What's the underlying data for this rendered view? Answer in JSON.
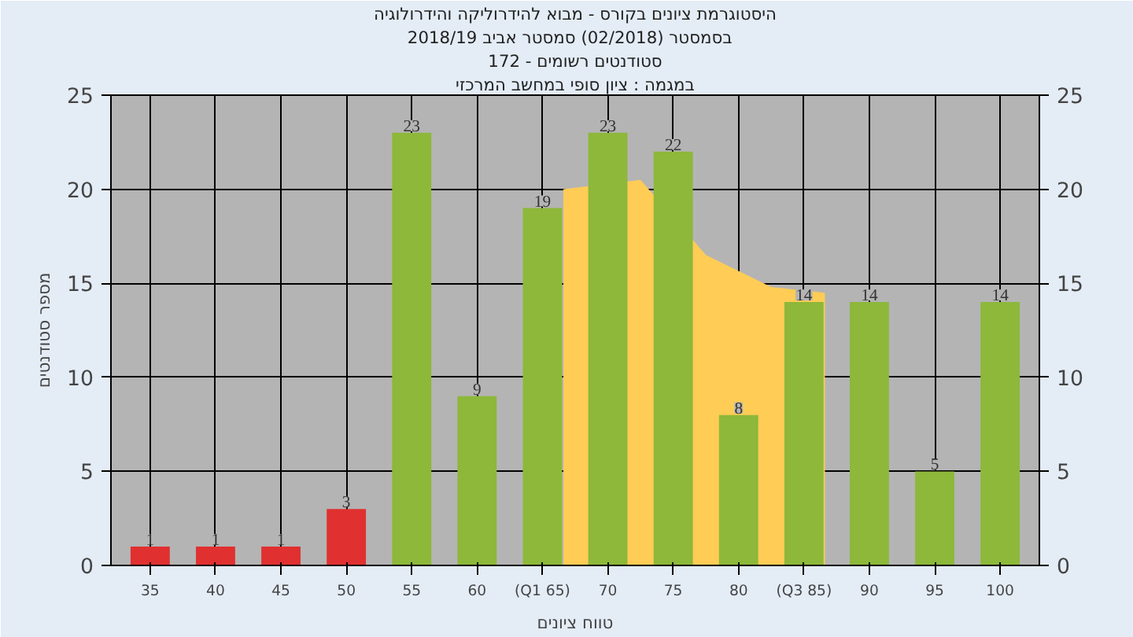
{
  "chart_data": {
    "type": "bar",
    "title": "היסטוגרמת ציונים בקורס - מבוא להידרוליקה והידרולוגיה",
    "subtitle": "בסמסטר  (02/2018)  סמסטר אביב 2018/19",
    "xlabel": "טווח ציונים",
    "ylabel": "מספר סטודנטים",
    "annotations": [
      "סטודנטים רשומים - 172",
      "במגמה : ציון סופי במחשב המרכזי"
    ],
    "x": [
      35,
      40,
      45,
      50,
      55,
      60,
      65,
      70,
      75,
      80,
      85,
      90,
      95,
      100
    ],
    "xlim": [
      32,
      103
    ],
    "xticks": [
      35,
      40,
      45,
      50,
      55,
      60,
      {
        "value": 65,
        "label": "(Q1 65)"
      },
      70,
      75,
      80,
      {
        "value": 85,
        "label": "(Q3 85)"
      },
      90,
      95,
      100
    ],
    "series": [
      {
        "type": "area",
        "color": "#ffcc55",
        "x": [
          66.6,
          72.5,
          77.5,
          82.5,
          86.6
        ],
        "values": [
          20,
          20.5,
          16.5,
          14.8,
          14.5
        ]
      },
      {
        "values": [
          1,
          1,
          1,
          3,
          23,
          9,
          19,
          23,
          22,
          8,
          14,
          14,
          5,
          14
        ],
        "value_labels": [
          "1",
          "1",
          "1",
          "3",
          "23",
          "9",
          "19",
          "23",
          "22",
          "8",
          "14",
          "14",
          "5",
          "14"
        ],
        "colors": [
          "#e03030",
          "#e03030",
          "#e03030",
          "#e03030",
          "#8db83a",
          "#8db83a",
          "#8db83a",
          "#8db83a",
          "#8db83a",
          "#8db83a",
          "#8db83a",
          "#8db83a",
          "#8db83a",
          "#8db83a"
        ]
      }
    ],
    "ylim": [
      0,
      25
    ],
    "yticks": [
      0,
      5,
      10,
      15,
      20,
      25
    ],
    "y2lim": [
      0,
      25
    ],
    "y2ticks": [
      0,
      5,
      10,
      15,
      20,
      25
    ],
    "grid": true
  }
}
